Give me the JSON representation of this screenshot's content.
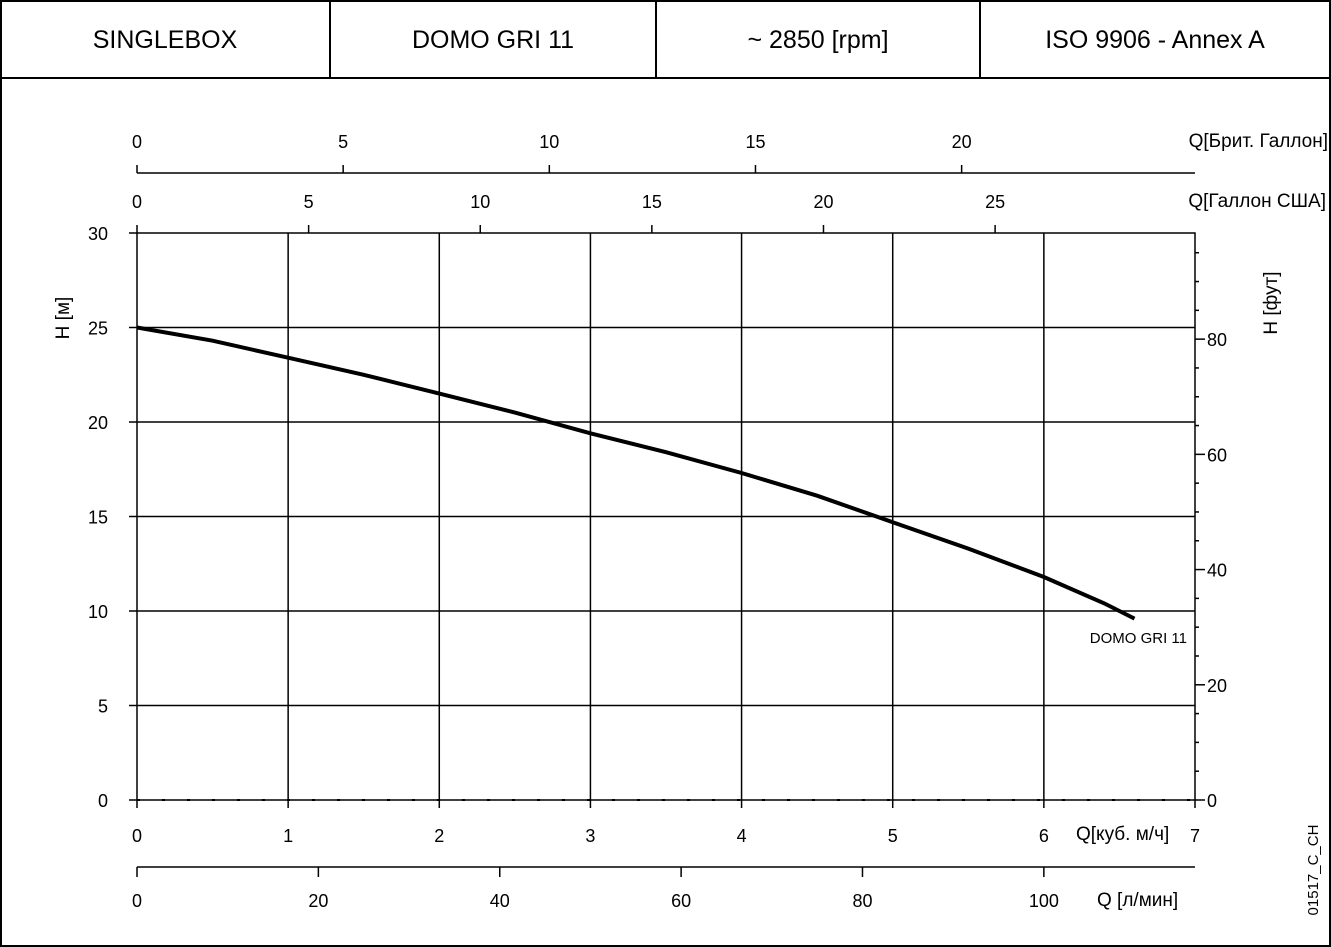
{
  "header": {
    "cells": [
      "SINGLEBOX",
      "DOMO GRI 11",
      "~ 2850 [rpm]",
      "ISO 9906 - Annex A"
    ]
  },
  "chart_data": {
    "type": "line",
    "title": "",
    "axes": {
      "bottom_primary": {
        "label": "Q[куб. м/ч]",
        "ticks": [
          "0",
          "1",
          "2",
          "3",
          "4",
          "5",
          "6",
          "7"
        ],
        "range": [
          0,
          7
        ]
      },
      "bottom_secondary": {
        "label": "Q [л/мин]",
        "ticks": [
          "0",
          "20",
          "40",
          "60",
          "80",
          "100"
        ],
        "values": [
          0,
          20,
          40,
          60,
          80,
          100
        ]
      },
      "top_uk": {
        "label": "Q[Брит. Галлон]",
        "ticks": [
          "0",
          "5",
          "10",
          "15",
          "20"
        ],
        "values": [
          0,
          5,
          10,
          15,
          20
        ]
      },
      "top_us": {
        "label": "Q[Галлон США]",
        "ticks": [
          "0",
          "5",
          "10",
          "15",
          "20",
          "25"
        ],
        "values": [
          0,
          5,
          10,
          15,
          20,
          25
        ]
      },
      "left": {
        "label": "H [м]",
        "ticks": [
          "0",
          "5",
          "10",
          "15",
          "20",
          "25",
          "30"
        ],
        "range": [
          0,
          30
        ]
      },
      "right": {
        "label": "H [фут]",
        "ticks": [
          "0",
          "20",
          "40",
          "60",
          "80"
        ],
        "values": [
          0,
          20,
          40,
          60,
          80
        ]
      }
    },
    "grid": true,
    "series": [
      {
        "name": "DOMO GRI 11",
        "x": [
          0,
          0.5,
          1.0,
          1.5,
          2.0,
          2.5,
          3.0,
          3.5,
          4.0,
          4.5,
          5.0,
          5.5,
          6.0,
          6.4,
          6.6
        ],
        "y": [
          25.0,
          24.3,
          23.4,
          22.5,
          21.5,
          20.5,
          19.4,
          18.4,
          17.3,
          16.1,
          14.7,
          13.3,
          11.8,
          10.4,
          9.6
        ]
      }
    ]
  },
  "watermark": "01517_C_CH"
}
